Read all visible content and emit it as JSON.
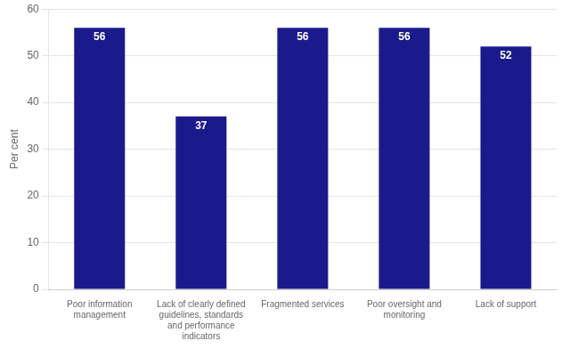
{
  "chart_data": {
    "type": "bar",
    "ylabel": "Per cent",
    "categories": [
      "Poor information\nmanagement",
      "Lack of clearly defined\nguidelines, standards\nand performance\nindicators",
      "Fragmented services",
      "Poor oversight and\nmonitoring",
      "Lack of support"
    ],
    "values": [
      56,
      37,
      56,
      56,
      52
    ],
    "color": "#1a1a8c",
    "ylim": [
      0,
      60
    ],
    "yticks": [
      0,
      10,
      20,
      30,
      40,
      50,
      60
    ],
    "grid": true,
    "data_labels": true
  }
}
